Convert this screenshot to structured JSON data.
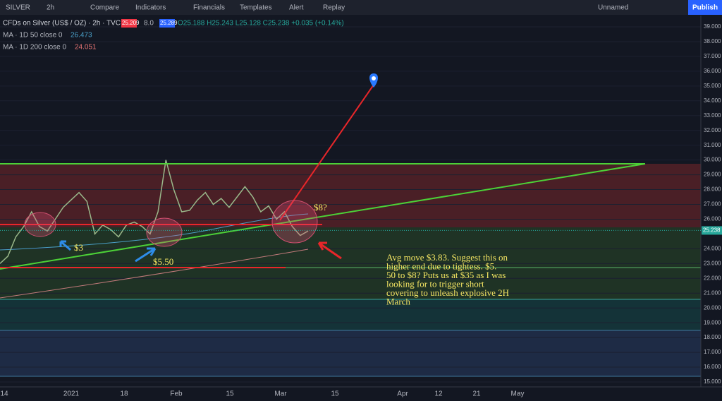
{
  "toolbar": {
    "symbol": "SILVER",
    "interval": "2h",
    "items": [
      "Compare",
      "Indicators",
      "Financials",
      "Templates",
      "Alert",
      "Replay"
    ],
    "layout_name": "Unnamed",
    "publish": "Publish"
  },
  "legend": {
    "title": "CFDs on Silver (US$ / OZ) · 2h · TVC",
    "bid": "25.209",
    "spread": "8.0",
    "ask": "25.289",
    "ohlc": "O25.188 H25.243 L25.128 C25.238 +0.035 (+0.14%)",
    "ma": [
      {
        "label": "MA · 1D 50 close 0",
        "value": "26.473"
      },
      {
        "label": "MA · 1D 200 close 0",
        "value": "24.051"
      }
    ]
  },
  "chart": {
    "last_price": 25.238,
    "last_price_label": "25.238",
    "ylim": [
      15,
      39
    ],
    "yticks": [
      {
        "value": 39,
        "label": "39.000"
      },
      {
        "value": 38,
        "label": "38.000"
      },
      {
        "value": 37,
        "label": "37.000"
      },
      {
        "value": 36,
        "label": "36.000"
      },
      {
        "value": 35,
        "label": "35.000"
      },
      {
        "value": 34,
        "label": "34.000"
      },
      {
        "value": 33,
        "label": "33.000"
      },
      {
        "value": 32,
        "label": "32.000"
      },
      {
        "value": 31,
        "label": "31.000"
      },
      {
        "value": 30,
        "label": "30.000"
      },
      {
        "value": 29,
        "label": "29.000"
      },
      {
        "value": 28,
        "label": "28.000"
      },
      {
        "value": 27,
        "label": "27.000"
      },
      {
        "value": 26,
        "label": "26.000"
      },
      {
        "value": 24,
        "label": "24.000"
      },
      {
        "value": 23,
        "label": "23.000"
      },
      {
        "value": 22,
        "label": "22.000"
      },
      {
        "value": 21,
        "label": "21.000"
      },
      {
        "value": 20,
        "label": "20.000"
      },
      {
        "value": 19,
        "label": "19.000"
      },
      {
        "value": 18,
        "label": "18.000"
      },
      {
        "value": 17,
        "label": "17.000"
      },
      {
        "value": 16,
        "label": "16.000"
      },
      {
        "value": 15,
        "label": "15.000"
      }
    ],
    "xlabels": [
      "14",
      "2021",
      "18",
      "Feb",
      "15",
      "Mar",
      "15",
      "Apr",
      "12",
      "21",
      "May"
    ],
    "price": {
      "values": [
        23.0,
        23.5,
        24.8,
        25.5,
        26.5,
        25.5,
        25.2,
        26.0,
        26.8,
        27.3,
        27.8,
        27.2,
        25.0,
        25.6,
        25.3,
        24.8,
        25.6,
        25.8,
        25.5,
        25.0,
        26.5,
        30.0,
        28.0,
        26.5,
        26.6,
        27.3,
        27.8,
        27.0,
        27.4,
        26.8,
        27.5,
        28.2,
        27.5,
        26.5,
        26.9,
        26.0,
        26.5,
        25.5,
        24.9,
        25.2
      ]
    },
    "annotations": {
      "a3": "$3",
      "a550": "$5.50",
      "a8": "$8?",
      "note": [
        "Avg move $3.83.  Suggest this on",
        "higher end due to tightess.  $5.",
        "50 to $8? Puts us at $35 as I was",
        "looking for to trigger short",
        "covering to unleash explosive 2H",
        "March"
      ]
    }
  }
}
